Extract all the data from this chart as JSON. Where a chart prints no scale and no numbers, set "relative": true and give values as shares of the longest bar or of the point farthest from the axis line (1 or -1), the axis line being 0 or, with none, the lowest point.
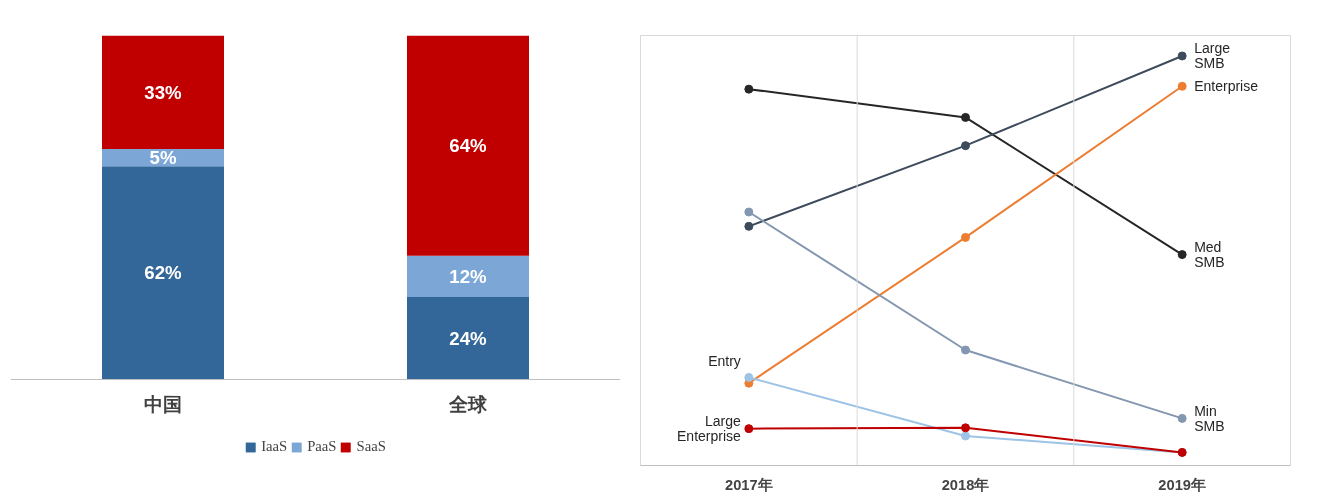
{
  "chart_data": [
    {
      "type": "bar",
      "stacked": true,
      "categories": [
        "中国",
        "全球"
      ],
      "tick_labels": "x",
      "legend": "bottom",
      "grid": false,
      "series": [
        {
          "name": "IaaS",
          "color": "#336699",
          "values": [
            62,
            24
          ],
          "value_labels": [
            "62%",
            "24%"
          ]
        },
        {
          "name": "PaaS",
          "color": "#7ba6d6",
          "values": [
            5,
            12
          ],
          "value_labels": [
            "5%",
            "12%"
          ]
        },
        {
          "name": "SaaS",
          "color": "#c00000",
          "values": [
            33,
            64
          ],
          "value_labels": [
            "33%",
            "64%"
          ]
        }
      ]
    },
    {
      "type": "line",
      "relative": true,
      "categories": [
        "2017年",
        "2018年",
        "2019年"
      ],
      "marker": "circle",
      "grid": "x",
      "series": [
        {
          "name": "Med SMB",
          "color": "#262626",
          "values": [
            0.919,
            0.85,
            0.515
          ]
        },
        {
          "name": "Large SMB",
          "color": "#3d4b5c",
          "values": [
            0.584,
            0.781,
            1
          ]
        },
        {
          "name": "Enterprise",
          "color": "#ed7d31",
          "values": [
            0.201,
            0.557,
            0.926
          ]
        },
        {
          "name": "Min SMB",
          "color": "#8497b0",
          "values": [
            0.619,
            0.282,
            0.115
          ]
        },
        {
          "name": "Entry",
          "color": "#9dc3e6",
          "values": [
            0.215,
            0.072,
            0.032
          ]
        },
        {
          "name": "Large Enterprise",
          "color": "#c00000",
          "values": [
            0.09,
            0.092,
            0.032
          ]
        }
      ]
    }
  ]
}
